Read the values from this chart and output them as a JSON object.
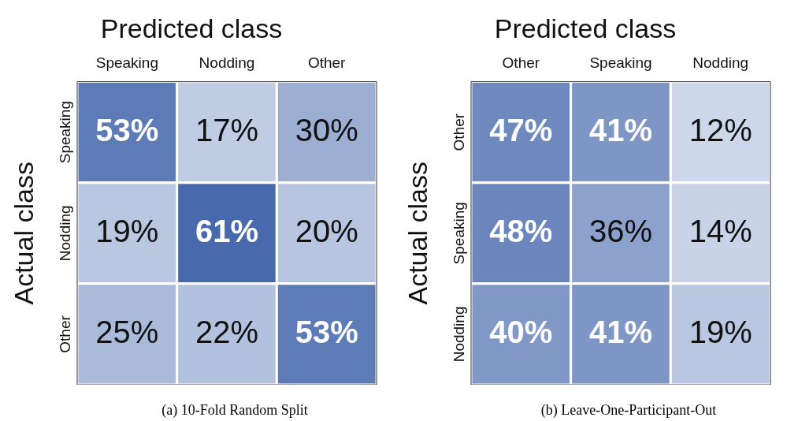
{
  "chart_data": [
    {
      "type": "heatmap",
      "title": "Predicted class",
      "ylabel": "Actual class",
      "categories": [
        "Speaking",
        "Nodding",
        "Other"
      ],
      "y_categories": [
        "Speaking",
        "Nodding",
        "Other"
      ],
      "cells": [
        [
          53,
          17,
          30
        ],
        [
          19,
          61,
          20
        ],
        [
          25,
          22,
          53
        ]
      ],
      "cell_labels": [
        [
          "53%",
          "17%",
          "30%"
        ],
        [
          "19%",
          "61%",
          "20%"
        ],
        [
          "25%",
          "22%",
          "53%"
        ]
      ],
      "color": "#2f55a0",
      "annotations": [
        "(a) 10-Fold Random Split"
      ]
    },
    {
      "type": "heatmap",
      "title": "Predicted class",
      "ylabel": "Actual class",
      "categories": [
        "Other",
        "Speaking",
        "Nodding"
      ],
      "y_categories": [
        "Other",
        "Speaking",
        "Nodding"
      ],
      "cells": [
        [
          47,
          41,
          12
        ],
        [
          48,
          36,
          14
        ],
        [
          40,
          41,
          19
        ]
      ],
      "cell_labels": [
        [
          "47%",
          "41%",
          "12%"
        ],
        [
          "48%",
          "36%",
          "14%"
        ],
        [
          "40%",
          "41%",
          "19%"
        ]
      ],
      "color": "#2f55a0",
      "annotations": [
        "(b) Leave-One-Participant-Out"
      ]
    }
  ]
}
